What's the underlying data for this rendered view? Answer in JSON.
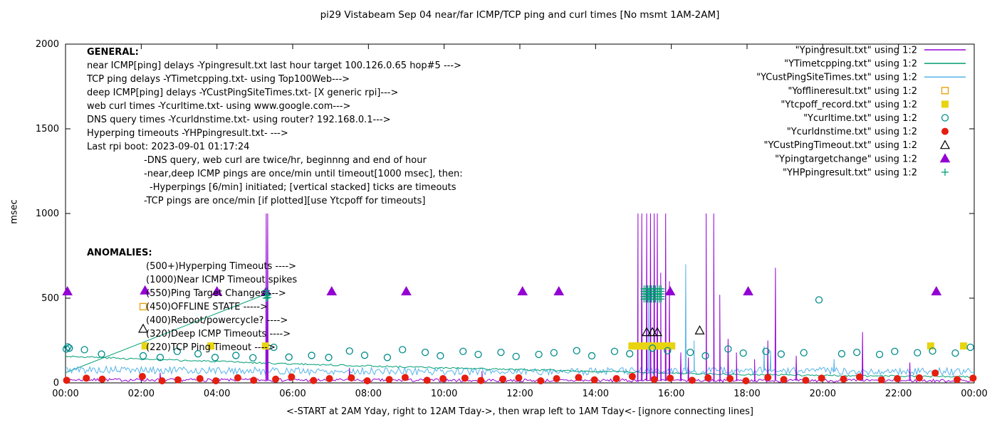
{
  "chart_data": {
    "type": "line",
    "title": "pi29 Vistabeam Sep 04  near/far ICMP/TCP ping and curl times [No msmt 1AM-2AM]",
    "xlabel": "<-START at 2AM Yday, right to 12AM Tday->, then wrap left to 1AM Tday<- [ignore connecting lines]",
    "ylabel": "msec",
    "xlim": [
      0,
      24
    ],
    "ylim": [
      0,
      2000
    ],
    "grid": false,
    "legend_position": "top-right",
    "y_ticks": [
      0,
      500,
      1000,
      1500,
      2000
    ],
    "x_ticks": [
      {
        "t": 0,
        "label": "00:00"
      },
      {
        "t": 2,
        "label": "02:00"
      },
      {
        "t": 4,
        "label": "04:00"
      },
      {
        "t": 6,
        "label": "06:00"
      },
      {
        "t": 8,
        "label": "08:00"
      },
      {
        "t": 10,
        "label": "10:00"
      },
      {
        "t": 12,
        "label": "12:00"
      },
      {
        "t": 14,
        "label": "14:00"
      },
      {
        "t": 16,
        "label": "16:00"
      },
      {
        "t": 18,
        "label": "18:00"
      },
      {
        "t": 20,
        "label": "20:00"
      },
      {
        "t": 22,
        "label": "22:00"
      },
      {
        "t": 24,
        "label": "00:00"
      }
    ],
    "legend": [
      {
        "label": "\"Ypingresult.txt\" using 1:2",
        "sample": "line",
        "color": "#9400d3"
      },
      {
        "label": "\"YTimetcpping.txt\" using 1:2",
        "sample": "line",
        "color": "#009e73"
      },
      {
        "label": "\"YCustPingSiteTimes.txt\" using 1:2",
        "sample": "line",
        "color": "#56b4e9"
      },
      {
        "label": "\"Yofflineresult.txt\" using 1:2",
        "sample": "square-open",
        "color": "#e69f00"
      },
      {
        "label": "\"Ytcpoff_record.txt\" using 1:2",
        "sample": "square-filled",
        "color": "#e8d411"
      },
      {
        "label": "\"Ycurltime.txt\" using 1:2",
        "sample": "circle-open",
        "color": "#008b8b"
      },
      {
        "label": "\"Ycurldnstime.txt\" using 1:2",
        "sample": "circle-filled",
        "color": "#e51e10"
      },
      {
        "label": "\"YCustPingTimeout.txt\" using 1:2",
        "sample": "triangle-open",
        "color": "#000000"
      },
      {
        "label": "\"Ypingtargetchange\" using 1:2",
        "sample": "triangle-filled",
        "color": "#9400d3"
      },
      {
        "label": "\"YHPpingresult.txt\" using 1:2",
        "sample": "plus",
        "color": "#009e73"
      }
    ],
    "annotations": {
      "general": {
        "heading": "GENERAL:",
        "lines": [
          {
            "text": "near ICMP[ping] delays -Ypingresult.txt last hour target 100.126.0.65 hop#5 --->",
            "indent": 0
          },
          {
            "text": "TCP ping delays -YTimetcpping.txt- using Top100Web--->",
            "indent": 0
          },
          {
            "text": "deep ICMP[ping] delays -YCustPingSiteTimes.txt- [X generic rpi]--->",
            "indent": 0
          },
          {
            "text": "web curl times -Ycurltime.txt- using www.google.com--->",
            "indent": 0
          },
          {
            "text": "DNS query times -Ycurldnstime.txt- using router? 192.168.0.1--->",
            "indent": 0
          },
          {
            "text": "Hyperping timeouts -YHPpingresult.txt- --->",
            "indent": 0
          },
          {
            "text": "Last rpi boot: 2023-09-01 01:17:24",
            "indent": 0
          },
          {
            "text": "-DNS query, web curl are twice/hr, beginnng and end of hour",
            "indent": 80
          },
          {
            "text": "-near,deep ICMP pings are once/min until timeout[1000 msec], then:",
            "indent": 80
          },
          {
            "text": "-Hyperpings [6/min] initiated; [vertical stacked] ticks are timeouts",
            "indent": 88
          },
          {
            "text": "-TCP pings are once/min [if plotted][use Ytcpoff for timeouts]",
            "indent": 80
          }
        ]
      },
      "anomalies": {
        "heading": "ANOMALIES:",
        "lines": [
          {
            "text": "(500+)Hyperping Timeouts ---->"
          },
          {
            "text": "(1000)Near ICMP Timeout spikes"
          },
          {
            "text": "(550)Ping Target Changes --->"
          },
          {
            "text": "(450)OFFLINE STATE ----->"
          },
          {
            "text": "(400)Reboot/powercycle? ---->"
          },
          {
            "text": "(320)Deep ICMP Timeouts ---->"
          },
          {
            "text": "(220)TCP Ping Timeout ---->"
          }
        ]
      }
    },
    "series": {
      "near_icmp": {
        "name": "Ypingresult.txt near ICMP ping delay",
        "color": "#9400d3",
        "style": "noisy-line",
        "seed": 7,
        "n": 600,
        "base": [
          [
            0,
            18
          ],
          [
            14,
            14
          ],
          [
            24,
            13
          ]
        ],
        "jitter": 9,
        "min": 3,
        "spikes": [
          [
            2.5,
            60
          ],
          [
            5.3,
            1000
          ],
          [
            5.34,
            1000
          ],
          [
            7.5,
            90
          ],
          [
            11.0,
            70
          ],
          [
            15.12,
            1000
          ],
          [
            15.22,
            1000
          ],
          [
            15.35,
            1000
          ],
          [
            15.45,
            1000
          ],
          [
            15.55,
            1000
          ],
          [
            15.63,
            1000
          ],
          [
            15.72,
            650
          ],
          [
            15.85,
            1000
          ],
          [
            15.95,
            600
          ],
          [
            16.25,
            180
          ],
          [
            16.45,
            150
          ],
          [
            16.92,
            1000
          ],
          [
            17.12,
            1000
          ],
          [
            17.28,
            520
          ],
          [
            17.5,
            260
          ],
          [
            17.72,
            180
          ],
          [
            18.2,
            140
          ],
          [
            18.55,
            250
          ],
          [
            18.75,
            680
          ],
          [
            19.3,
            160
          ],
          [
            21.05,
            300
          ],
          [
            22.3,
            120
          ]
        ]
      },
      "tcp_ping": {
        "name": "YTimetcpping.txt TCP ping delay",
        "color": "#009e73",
        "style": "noisy-line",
        "seed": 3,
        "n": 500,
        "base": [
          [
            0,
            158
          ],
          [
            2,
            140
          ],
          [
            4,
            126
          ],
          [
            6,
            112
          ],
          [
            8,
            100
          ],
          [
            10,
            88
          ],
          [
            12,
            78
          ],
          [
            14,
            68
          ],
          [
            16,
            58
          ],
          [
            18,
            50
          ],
          [
            20,
            44
          ],
          [
            22,
            40
          ],
          [
            24,
            36
          ]
        ],
        "jitter": 5,
        "min": 5,
        "spikes": []
      },
      "deep_icmp": {
        "name": "YCustPingSiteTimes.txt deep ICMP ping delay",
        "color": "#56b4e9",
        "style": "noisy-line",
        "seed": 5,
        "n": 600,
        "base": [
          [
            0,
            78
          ],
          [
            6,
            70
          ],
          [
            12,
            68
          ],
          [
            18,
            72
          ],
          [
            24,
            66
          ]
        ],
        "jitter": 22,
        "min": 25,
        "spikes": [
          [
            5.31,
            480
          ],
          [
            15.4,
            555
          ],
          [
            15.55,
            540
          ],
          [
            16.38,
            700
          ],
          [
            16.6,
            250
          ],
          [
            18.45,
            215
          ],
          [
            18.62,
            190
          ],
          [
            20.3,
            140
          ]
        ]
      },
      "connectors": [
        {
          "color": "#009e73",
          "points": [
            [
              0.0,
              60
            ],
            [
              5.3,
              525
            ]
          ]
        },
        {
          "color": "#009e73",
          "points": [
            [
              15.28,
              522
            ],
            [
              15.75,
              522
            ]
          ]
        }
      ],
      "offline": {
        "name": "Yofflineresult.txt offline state",
        "color": "#e69f00",
        "marker": "square-open",
        "points": [
          [
            2.05,
            450
          ]
        ]
      },
      "tcpoff": {
        "name": "Ytcpoff_record.txt TCP ping timeout",
        "color": "#e8d411",
        "marker": "square-filled",
        "points": [
          [
            2.1,
            218
          ],
          [
            3.84,
            218
          ],
          [
            5.28,
            218
          ],
          [
            14.96,
            218
          ],
          [
            15.03,
            218
          ],
          [
            15.1,
            218
          ],
          [
            15.17,
            218
          ],
          [
            15.24,
            218
          ],
          [
            15.31,
            218
          ],
          [
            15.38,
            218
          ],
          [
            15.45,
            218
          ],
          [
            15.52,
            218
          ],
          [
            15.59,
            218
          ],
          [
            15.66,
            218
          ],
          [
            15.73,
            218
          ],
          [
            15.8,
            218
          ],
          [
            15.87,
            218
          ],
          [
            15.94,
            218
          ],
          [
            16.01,
            218
          ],
          [
            22.85,
            218
          ],
          [
            23.72,
            218
          ]
        ]
      },
      "curl": {
        "name": "Ycurltime.txt web curl time",
        "color": "#008b8b",
        "marker": "circle-open",
        "points": [
          [
            0.02,
            200
          ],
          [
            0.06,
            212
          ],
          [
            0.1,
            205
          ],
          [
            0.5,
            196
          ],
          [
            0.95,
            170
          ],
          [
            2.05,
            160
          ],
          [
            2.5,
            150
          ],
          [
            2.95,
            186
          ],
          [
            3.5,
            172
          ],
          [
            3.95,
            150
          ],
          [
            4.5,
            162
          ],
          [
            4.95,
            148
          ],
          [
            5.5,
            210
          ],
          [
            5.9,
            152
          ],
          [
            6.5,
            162
          ],
          [
            6.95,
            150
          ],
          [
            7.5,
            188
          ],
          [
            7.9,
            163
          ],
          [
            8.5,
            150
          ],
          [
            8.9,
            196
          ],
          [
            9.5,
            180
          ],
          [
            9.9,
            160
          ],
          [
            10.5,
            186
          ],
          [
            10.9,
            168
          ],
          [
            11.5,
            180
          ],
          [
            11.9,
            156
          ],
          [
            12.5,
            168
          ],
          [
            12.9,
            178
          ],
          [
            13.5,
            190
          ],
          [
            13.9,
            160
          ],
          [
            14.5,
            186
          ],
          [
            14.9,
            172
          ],
          [
            15.5,
            205
          ],
          [
            15.9,
            190
          ],
          [
            16.5,
            180
          ],
          [
            16.9,
            160
          ],
          [
            17.5,
            200
          ],
          [
            17.9,
            176
          ],
          [
            18.5,
            186
          ],
          [
            18.9,
            170
          ],
          [
            19.5,
            178
          ],
          [
            19.9,
            490
          ],
          [
            20.5,
            172
          ],
          [
            20.9,
            180
          ],
          [
            21.5,
            168
          ],
          [
            21.9,
            186
          ],
          [
            22.5,
            178
          ],
          [
            22.9,
            188
          ],
          [
            23.5,
            176
          ],
          [
            23.9,
            210
          ]
        ]
      },
      "dns": {
        "name": "Ycurldnstime.txt DNS query time",
        "color": "#e51e10",
        "marker": "circle-filled",
        "points": [
          [
            0.03,
            15
          ],
          [
            0.55,
            28
          ],
          [
            0.97,
            22
          ],
          [
            2.03,
            38
          ],
          [
            2.55,
            12
          ],
          [
            2.97,
            18
          ],
          [
            3.55,
            25
          ],
          [
            3.97,
            12
          ],
          [
            4.55,
            30
          ],
          [
            4.97,
            15
          ],
          [
            5.55,
            22
          ],
          [
            5.97,
            35
          ],
          [
            6.55,
            14
          ],
          [
            6.97,
            25
          ],
          [
            7.55,
            30
          ],
          [
            7.97,
            12
          ],
          [
            8.55,
            20
          ],
          [
            8.97,
            32
          ],
          [
            9.55,
            15
          ],
          [
            9.97,
            25
          ],
          [
            10.55,
            28
          ],
          [
            10.97,
            14
          ],
          [
            11.55,
            22
          ],
          [
            11.97,
            30
          ],
          [
            12.55,
            12
          ],
          [
            12.97,
            25
          ],
          [
            13.55,
            32
          ],
          [
            13.97,
            18
          ],
          [
            14.55,
            25
          ],
          [
            14.97,
            38
          ],
          [
            15.55,
            20
          ],
          [
            15.97,
            28
          ],
          [
            16.55,
            15
          ],
          [
            16.97,
            30
          ],
          [
            17.55,
            25
          ],
          [
            17.97,
            12
          ],
          [
            18.55,
            32
          ],
          [
            18.97,
            20
          ],
          [
            19.55,
            15
          ],
          [
            19.97,
            28
          ],
          [
            20.55,
            22
          ],
          [
            20.97,
            35
          ],
          [
            21.55,
            18
          ],
          [
            21.97,
            25
          ],
          [
            22.55,
            30
          ],
          [
            22.97,
            58
          ],
          [
            23.55,
            20
          ],
          [
            23.97,
            28
          ]
        ]
      },
      "custping_timeout": {
        "name": "YCustPingTimeout.txt deep ICMP timeout",
        "color": "#000000",
        "marker": "triangle-open",
        "points": [
          [
            2.05,
            320
          ],
          [
            15.35,
            300
          ],
          [
            15.5,
            300
          ],
          [
            15.63,
            300
          ],
          [
            16.75,
            310
          ]
        ]
      },
      "target_change": {
        "name": "Ypingtargetchange ping target change",
        "color": "#9400d3",
        "marker": "triangle-filled",
        "points": [
          [
            0.05,
            540
          ],
          [
            2.1,
            545
          ],
          [
            4.0,
            540
          ],
          [
            5.3,
            540
          ],
          [
            7.03,
            540
          ],
          [
            9.0,
            540
          ],
          [
            12.07,
            540
          ],
          [
            13.03,
            540
          ],
          [
            15.97,
            540
          ],
          [
            18.03,
            540
          ],
          [
            23.0,
            540
          ]
        ]
      },
      "hyperping": {
        "name": "YHPpingresult.txt hyperping timeout ticks",
        "color": "#009e73",
        "marker": "plus",
        "points": [
          [
            5.3,
            500
          ],
          [
            5.3,
            515
          ],
          [
            5.3,
            530
          ],
          [
            5.3,
            545
          ],
          [
            5.34,
            505
          ],
          [
            5.34,
            520
          ]
        ],
        "cluster": {
          "t0": 15.28,
          "dt": 0.05,
          "cols": 10,
          "values": [
            495,
            510,
            525,
            540,
            555
          ]
        }
      }
    }
  }
}
